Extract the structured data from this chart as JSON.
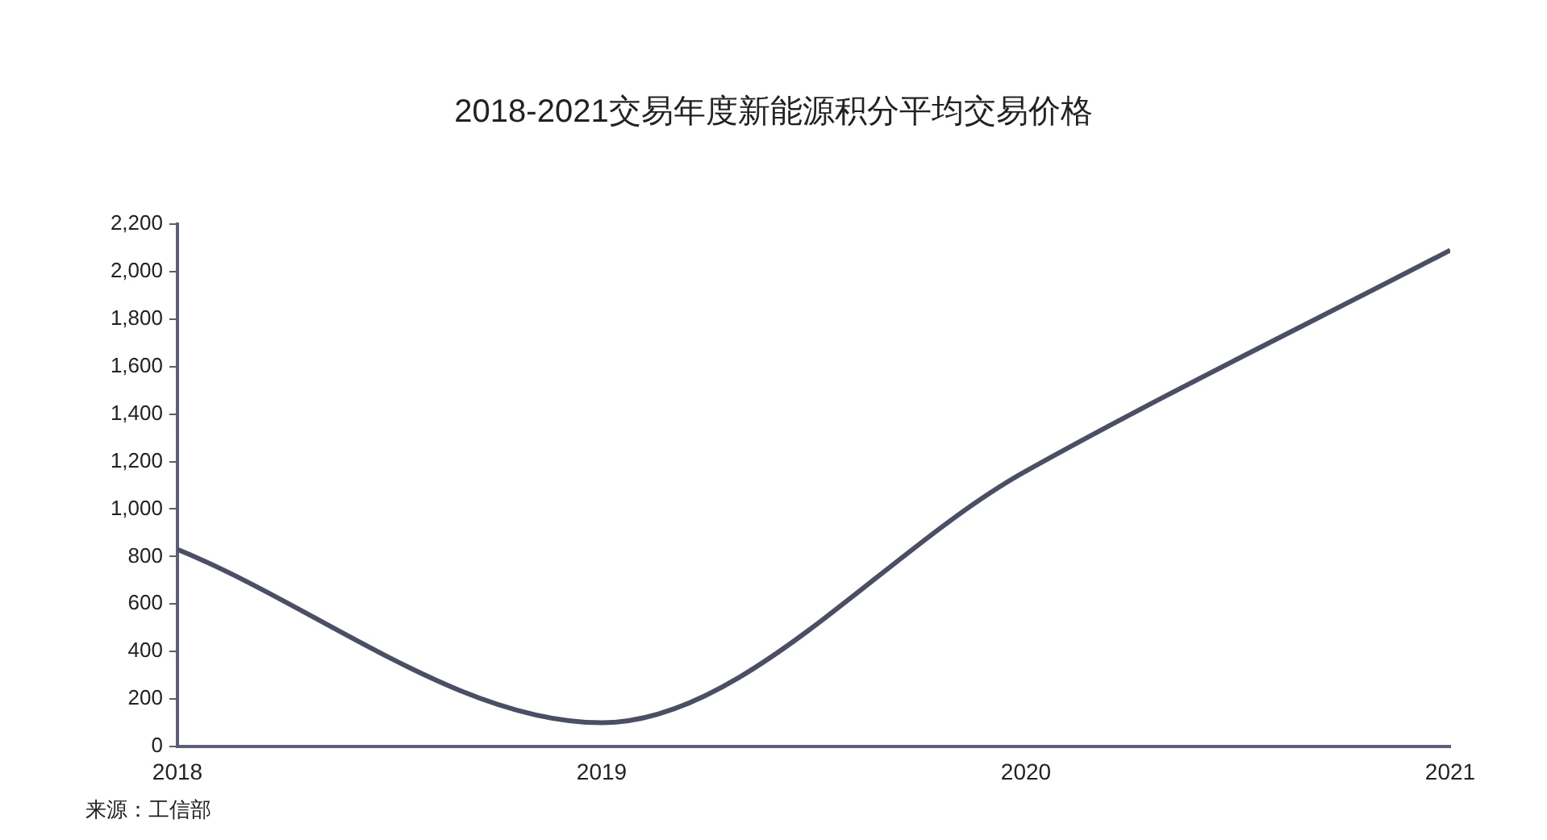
{
  "chart_data": {
    "type": "line",
    "title": "2018-2021交易年度新能源积分平均交易价格",
    "x": [
      2018,
      2019,
      2020,
      2021
    ],
    "series": [
      {
        "color": "#4b4f66",
        "values": [
          830,
          100,
          1160,
          2090
        ]
      }
    ],
    "xlim": [
      2018,
      2021
    ],
    "xticks": [
      2018,
      2019,
      2020,
      2021
    ],
    "ylim": [
      0,
      2200
    ],
    "yticks": [
      0,
      200,
      400,
      600,
      800,
      {
        "value": 1000,
        "label": "1,000"
      },
      {
        "value": 1200,
        "label": "1,200"
      },
      {
        "value": 1400,
        "label": "1,400"
      },
      {
        "value": 1600,
        "label": "1,600"
      },
      {
        "value": 1800,
        "label": "1,800"
      },
      {
        "value": 2000,
        "label": "2,000"
      },
      {
        "value": 2200,
        "label": "2,200"
      }
    ],
    "grid": false,
    "legend": false,
    "marker": "none",
    "line_style": "solid",
    "annotations": [
      "来源：工信部"
    ]
  }
}
